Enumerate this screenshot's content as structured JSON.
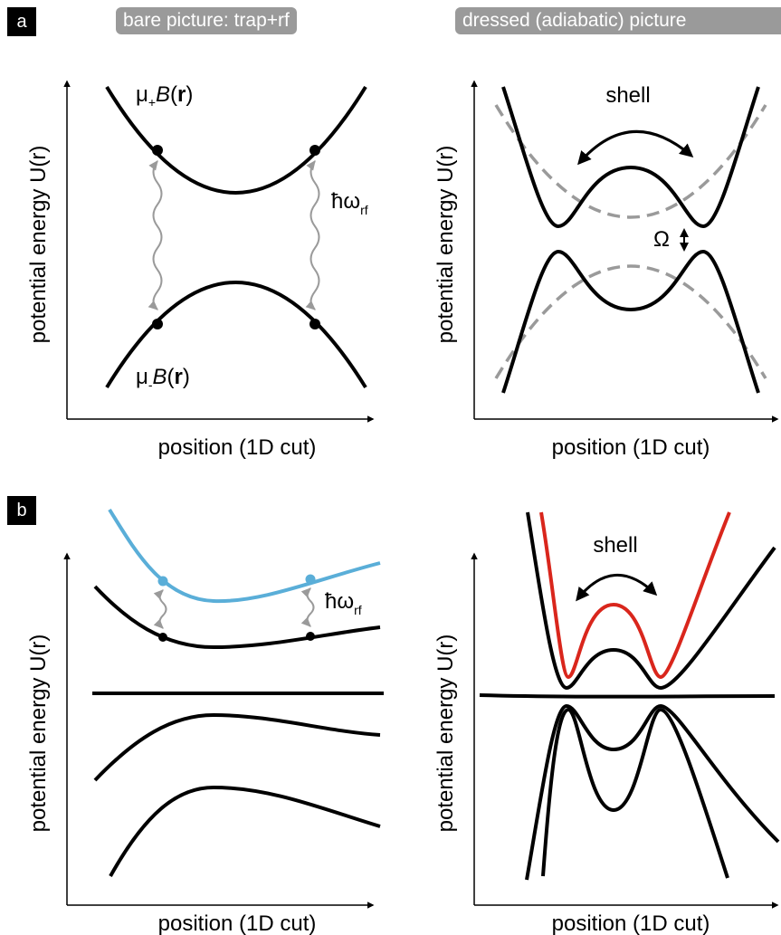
{
  "panel_labels": {
    "a": "a",
    "b": "b"
  },
  "headers": {
    "bare": "bare picture: trap+rf",
    "dressed": "dressed (adiabatic) picture"
  },
  "axes": {
    "ylabel": "potential energy U(r)",
    "xlabel": "position (1D cut)"
  },
  "labels": {
    "upper_state": "μ+B(r)",
    "lower_state": "μ-B(r)",
    "photon_energy": "ħω_rf",
    "shell": "shell",
    "coupling": "Ω"
  },
  "colors": {
    "black": "#000000",
    "gray": "#9a9a9a",
    "blue": "#5aaed8",
    "red": "#d9261c"
  }
}
